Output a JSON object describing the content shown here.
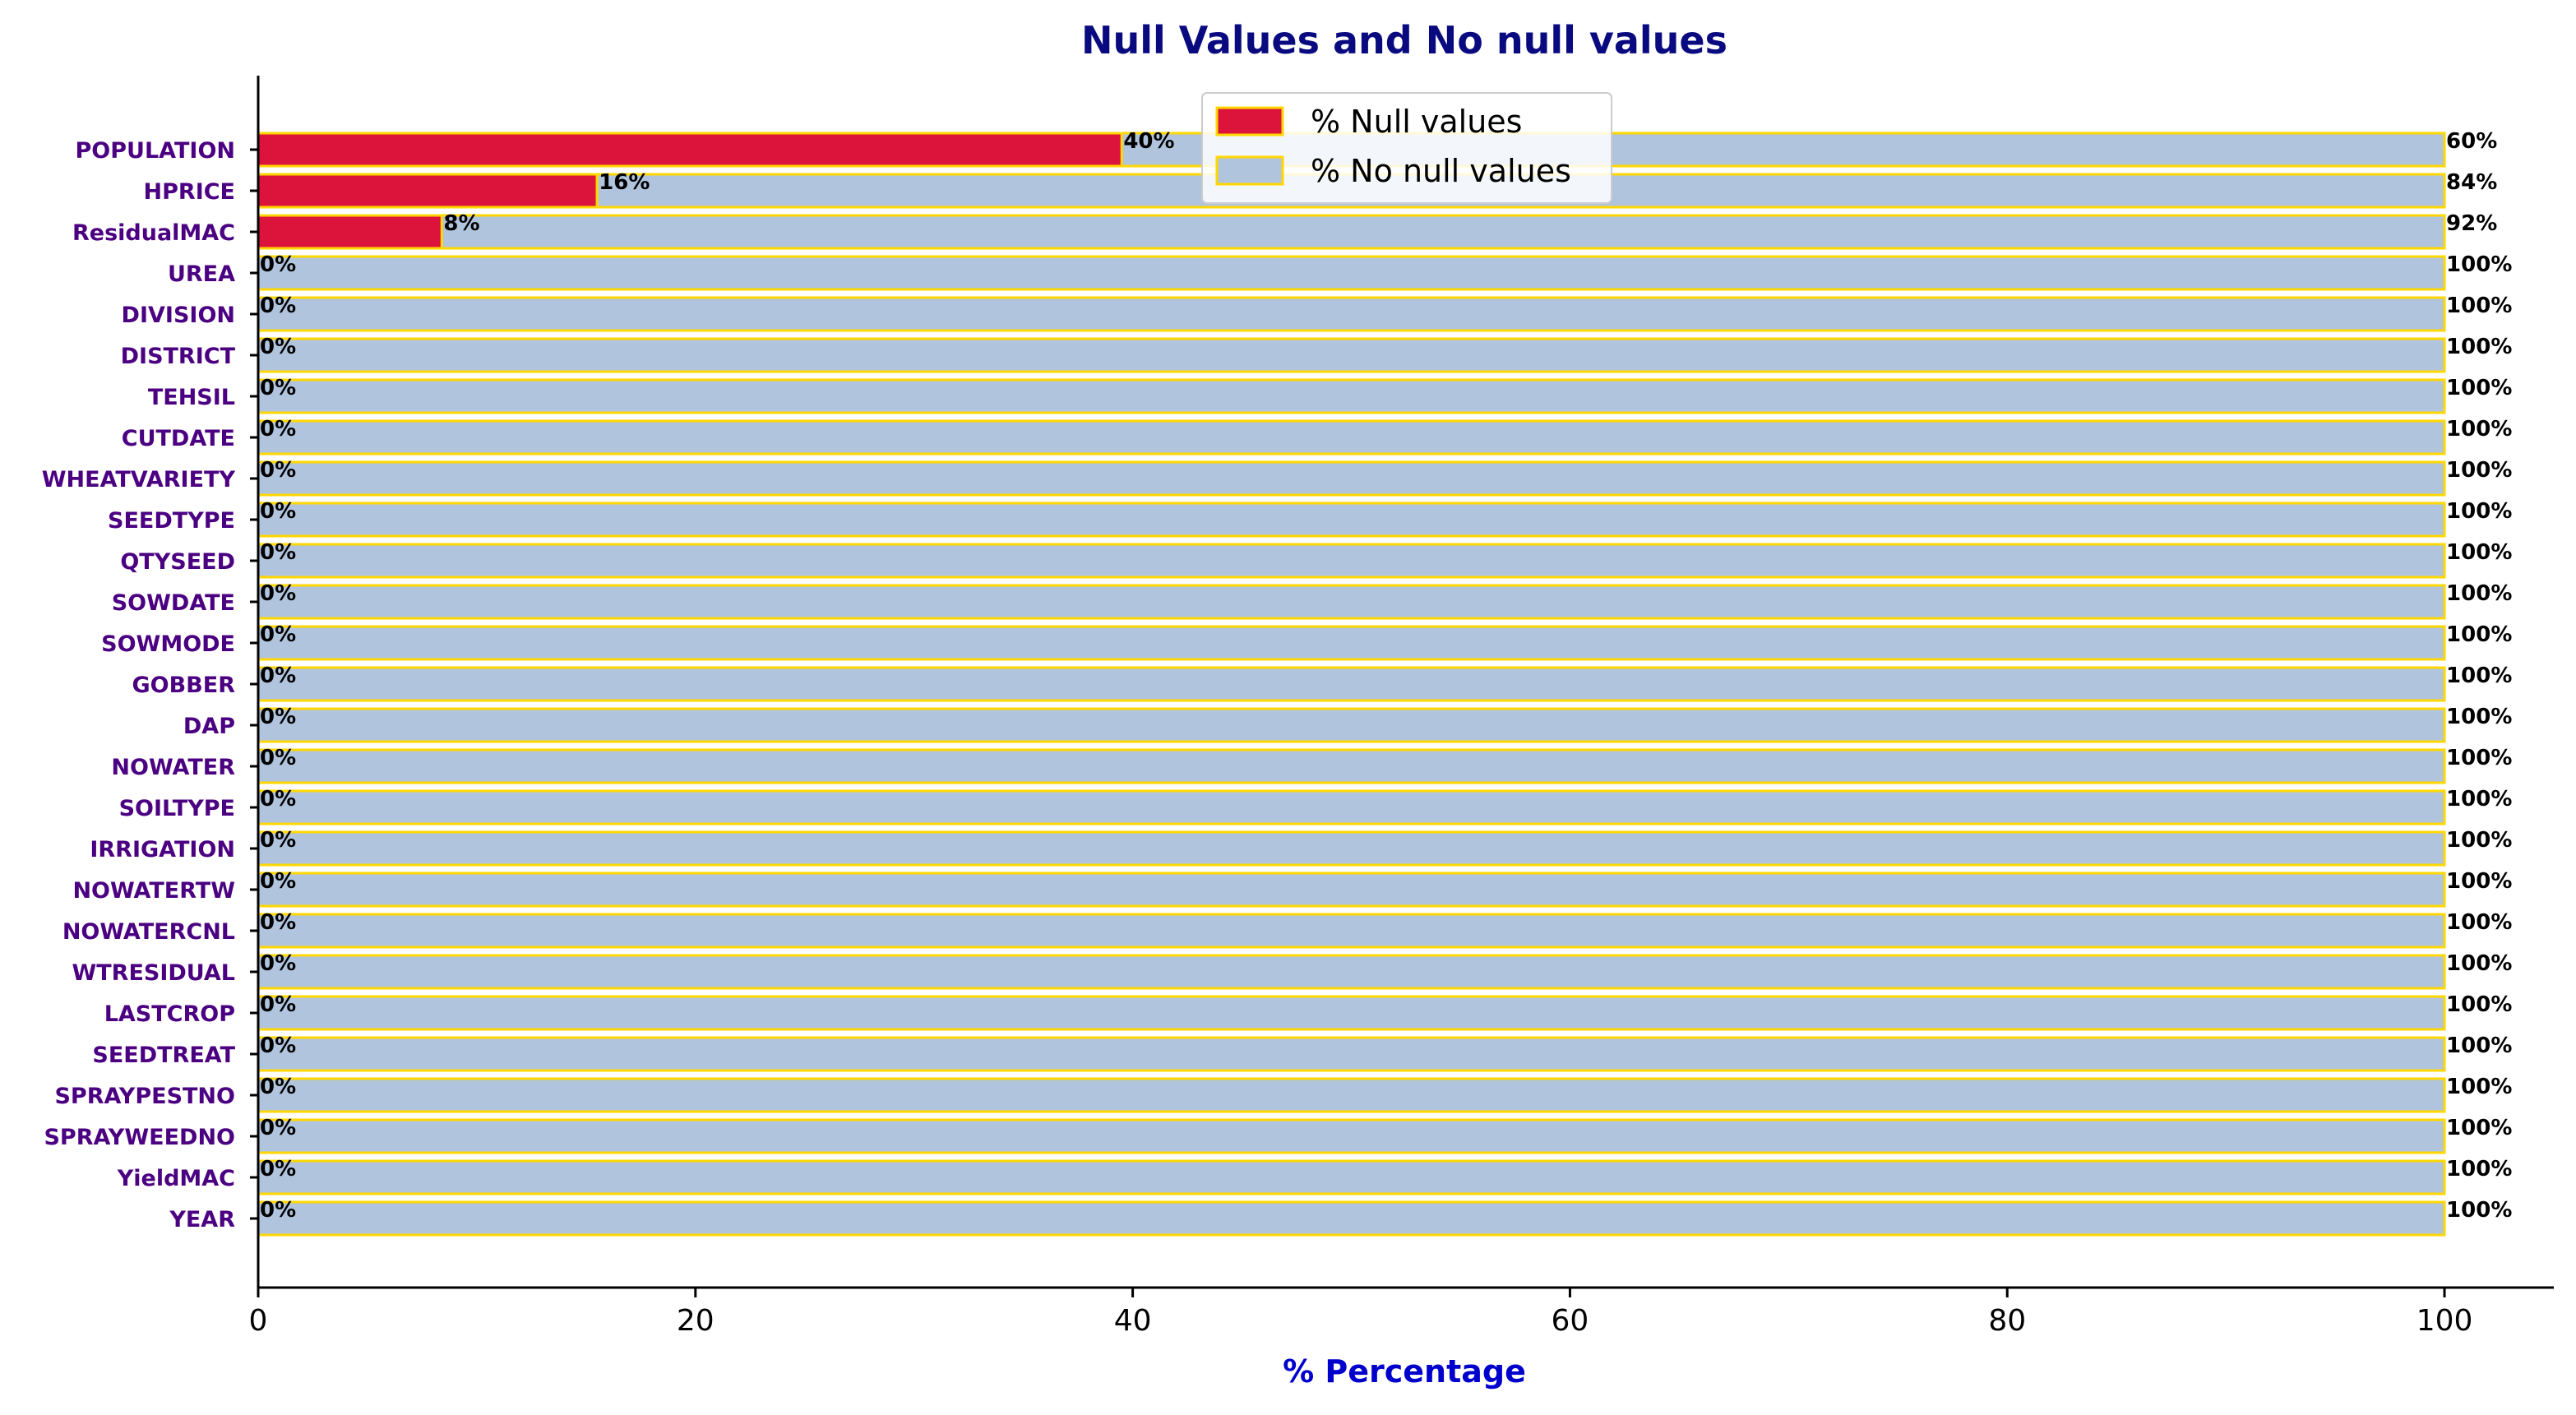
{
  "chart_data": {
    "type": "bar",
    "orientation": "horizontal",
    "stacked": true,
    "title": "Null Values and No null values",
    "xlabel": "% Percentage",
    "ylabel": "",
    "xlim": [
      0,
      105
    ],
    "xticks": [
      "0",
      "20",
      "40",
      "60",
      "80",
      "100"
    ],
    "categories": [
      "POPULATION",
      "HPRICE",
      "ResidualMAC",
      "UREA",
      "DIVISION",
      "DISTRICT",
      "TEHSIL",
      "CUTDATE",
      "WHEATVARIETY",
      "SEEDTYPE",
      "QTYSEED",
      "SOWDATE",
      "SOWMODE",
      "GOBBER",
      "DAP",
      "NOWATER",
      "SOILTYPE",
      "IRRIGATION",
      "NOWATERTW",
      "NOWATERCNL",
      "WTRESIDUAL",
      "LASTCROP",
      "SEEDTREAT",
      "SPRAYPESTNO",
      "SPRAYWEEDNO",
      "YieldMAC",
      "YEAR"
    ],
    "series": [
      {
        "name": "% Null values",
        "color": "#dc143c",
        "values": [
          39.5,
          15.5,
          8.4,
          0,
          0,
          0,
          0,
          0,
          0,
          0,
          0,
          0,
          0,
          0,
          0,
          0,
          0,
          0,
          0,
          0,
          0,
          0,
          0,
          0,
          0,
          0,
          0
        ],
        "labels": [
          "40%",
          "16%",
          "8%",
          "0%",
          "0%",
          "0%",
          "0%",
          "0%",
          "0%",
          "0%",
          "0%",
          "0%",
          "0%",
          "0%",
          "0%",
          "0%",
          "0%",
          "0%",
          "0%",
          "0%",
          "0%",
          "0%",
          "0%",
          "0%",
          "0%",
          "0%",
          "0%"
        ]
      },
      {
        "name": "% No null values",
        "color": "#b0c4de",
        "values": [
          60.5,
          84.5,
          91.6,
          100,
          100,
          100,
          100,
          100,
          100,
          100,
          100,
          100,
          100,
          100,
          100,
          100,
          100,
          100,
          100,
          100,
          100,
          100,
          100,
          100,
          100,
          100,
          100
        ],
        "labels": [
          "60%",
          "84%",
          "92%",
          "100%",
          "100%",
          "100%",
          "100%",
          "100%",
          "100%",
          "100%",
          "100%",
          "100%",
          "100%",
          "100%",
          "100%",
          "100%",
          "100%",
          "100%",
          "100%",
          "100%",
          "100%",
          "100%",
          "100%",
          "100%",
          "100%",
          "100%",
          "100%"
        ]
      }
    ],
    "bar_edge_color": "#ffd700",
    "grid": false,
    "legend_position": "top-center"
  }
}
